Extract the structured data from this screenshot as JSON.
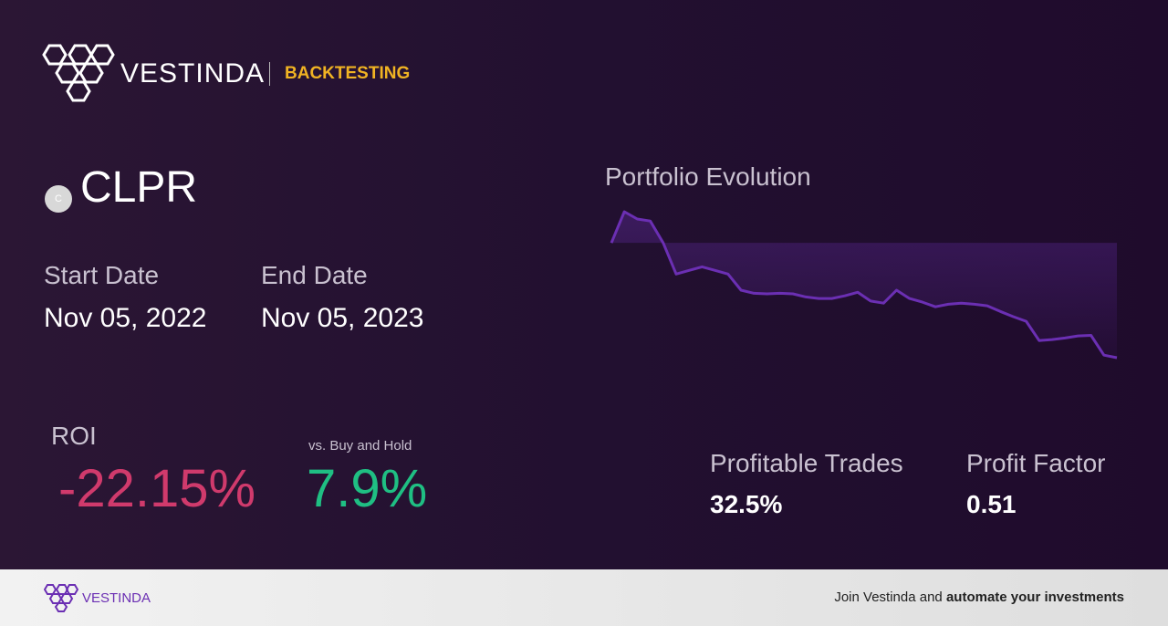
{
  "header": {
    "brand": "VESTINDA",
    "section": "BACKTESTING"
  },
  "asset": {
    "icon": "C",
    "symbol": "CLPR"
  },
  "dates": {
    "start_label": "Start Date",
    "start": "Nov 05, 2022",
    "end_label": "End Date",
    "end": "Nov 05, 2023"
  },
  "roi": {
    "label": "ROI",
    "value": "-22.15%",
    "compare_label": "vs. Buy and Hold",
    "compare_value": "7.9%"
  },
  "stats": {
    "profitable_label": "Profitable Trades",
    "profitable": "32.5%",
    "factor_label": "Profit Factor",
    "factor": "0.51"
  },
  "chart_data": {
    "type": "line",
    "title": "Portfolio Evolution",
    "color": "#6b2fb3",
    "values": [
      100,
      106.0,
      104.6,
      104.2,
      100,
      94.0,
      94.7,
      95.4,
      94.7,
      94.0,
      90.9,
      90.3,
      90.2,
      90.3,
      90.2,
      89.6,
      89.3,
      89.3,
      89.8,
      90.5,
      88.8,
      88.4,
      90.9,
      89.3,
      88.6,
      87.7,
      88.2,
      88.4,
      88.2,
      87.9,
      86.8,
      85.8,
      84.9,
      81.2,
      81.4,
      81.7,
      82.1,
      82.2,
      78.4,
      77.9
    ]
  },
  "footer": {
    "brand": "VESTINDA",
    "text": "Join Vestinda and ",
    "emphasis": "automate your investments"
  }
}
